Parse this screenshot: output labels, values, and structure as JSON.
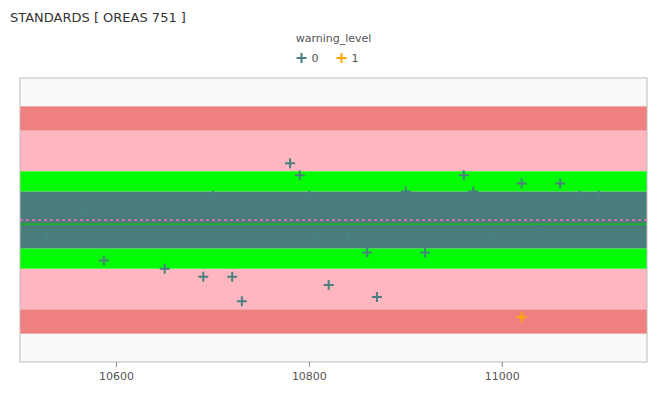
{
  "chart_data": {
    "type": "scatter",
    "title": "STANDARDS [ OREAS 751 ]",
    "legend_title": "warning_level",
    "legend": "top",
    "grid": false,
    "tick_labels": "x",
    "xlim": [
      10500,
      11150
    ],
    "xticks": [
      10600,
      10800,
      11000
    ],
    "ylim": [
      -0.35,
      0.35
    ],
    "bands": [
      {
        "from": 0.22,
        "to": 0.28,
        "color": "#f08080"
      },
      {
        "from": -0.28,
        "to": -0.22,
        "color": "#f08080"
      },
      {
        "from": 0.12,
        "to": 0.22,
        "color": "#ffb6c1"
      },
      {
        "from": -0.22,
        "to": -0.12,
        "color": "#ffb6c1"
      },
      {
        "from": 0.07,
        "to": 0.12,
        "color": "#00ff00"
      },
      {
        "from": -0.12,
        "to": -0.07,
        "color": "#00ff00"
      },
      {
        "from": -0.07,
        "to": 0.07,
        "color": "#4a7c7c"
      }
    ],
    "lines": [
      {
        "y": 0.0,
        "color": "#ff69b4",
        "line_style": "dashed"
      },
      {
        "y": -0.01,
        "color": "#00cc00",
        "line_style": "solid"
      }
    ],
    "series": [
      {
        "name": "0",
        "color": "#4a8080",
        "marker": "plus",
        "x": [
          10527,
          10567,
          10587,
          10620,
          10650,
          10690,
          10700,
          10720,
          10730,
          10760,
          10780,
          10790,
          10800,
          10805,
          10820,
          10840,
          10860,
          10870,
          10900,
          10920,
          10940,
          10960,
          10970,
          10990,
          11020,
          11030,
          11040,
          11060,
          11080,
          11100
        ],
        "values": [
          -0.04,
          0.02,
          -0.1,
          0.04,
          -0.12,
          -0.14,
          0.06,
          -0.14,
          -0.2,
          -0.05,
          0.14,
          0.11,
          0.06,
          -0.04,
          -0.16,
          -0.04,
          -0.08,
          -0.19,
          0.07,
          -0.08,
          0.05,
          0.11,
          0.07,
          -0.04,
          0.09,
          0.05,
          -0.03,
          0.09,
          0.06,
          0.06
        ]
      },
      {
        "name": "1",
        "color": "#ffa500",
        "marker": "plus",
        "x": [
          11020
        ],
        "values": [
          -0.24
        ]
      }
    ]
  }
}
